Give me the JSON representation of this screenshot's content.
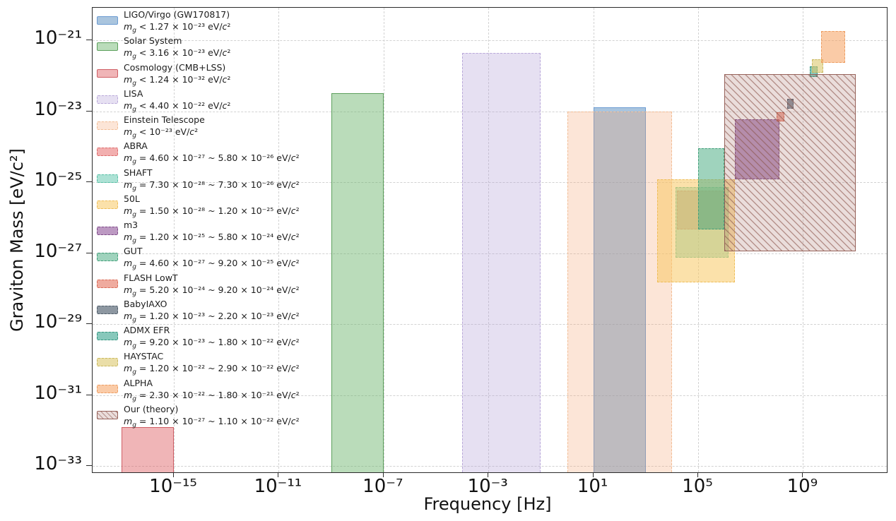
{
  "chart_data": {
    "type": "area",
    "title": "",
    "xlabel": "Frequency [Hz]",
    "ylabel": "Graviton Mass [eV/c²]",
    "x_scale": "log",
    "y_scale": "log",
    "xlim_exp": [
      -18.1,
      12.2
    ],
    "ylim_exp": [
      -33.2,
      -20.1
    ],
    "grid": "major dashed",
    "legend_position": "upper left",
    "x_ticks": [
      {
        "exp": -15,
        "label": "10⁻¹⁵"
      },
      {
        "exp": -11,
        "label": "10⁻¹¹"
      },
      {
        "exp": -7,
        "label": "10⁻⁷"
      },
      {
        "exp": -3,
        "label": "10⁻³"
      },
      {
        "exp": 1,
        "label": "10¹"
      },
      {
        "exp": 5,
        "label": "10⁵"
      },
      {
        "exp": 9,
        "label": "10⁹"
      }
    ],
    "y_ticks": [
      {
        "exp": -21,
        "label": "10⁻²¹"
      },
      {
        "exp": -23,
        "label": "10⁻²³"
      },
      {
        "exp": -25,
        "label": "10⁻²⁵"
      },
      {
        "exp": -27,
        "label": "10⁻²⁷"
      },
      {
        "exp": -29,
        "label": "10⁻²⁹"
      },
      {
        "exp": -31,
        "label": "10⁻³¹"
      },
      {
        "exp": -33,
        "label": "10⁻³³"
      }
    ],
    "regions": [
      {
        "name": "LIGO/Virgo (GW170817)",
        "mass_label": "m_g < 1.27 × 10⁻²³ eV/c²",
        "f_exp": [
          1.0,
          3.0
        ],
        "m_exp": [
          -33.2,
          -22.896
        ],
        "upper_limit": true,
        "fill": "rgba(86,140,190,0.50)",
        "border": "#6b9bd2",
        "border_style": "solid",
        "hatch": false
      },
      {
        "name": "Solar System",
        "mass_label": "m_g < 3.16 × 10⁻²³ eV/c²",
        "f_exp": [
          -9.0,
          -7.0
        ],
        "m_exp": [
          -33.2,
          -22.5
        ],
        "upper_limit": true,
        "fill": "rgba(102,178,102,0.45)",
        "border": "#5ca05c",
        "border_style": "solid",
        "hatch": false
      },
      {
        "name": "Cosmology (CMB+LSS)",
        "mass_label": "m_g < 1.24 × 10⁻³² eV/c²",
        "f_exp": [
          -17.0,
          -15.0
        ],
        "m_exp": [
          -33.2,
          -31.907
        ],
        "upper_limit": true,
        "fill": "rgba(222,90,95,0.45)",
        "border": "#cf5f66",
        "border_style": "solid",
        "hatch": false
      },
      {
        "name": "LISA",
        "mass_label": "m_g < 4.40 × 10⁻²² eV/c²",
        "f_exp": [
          -4.0,
          -1.0
        ],
        "m_exp": [
          -33.2,
          -21.357
        ],
        "upper_limit": true,
        "fill": "rgba(178,158,215,0.32)",
        "border": "#b8a7d9",
        "border_style": "dashed",
        "hatch": false
      },
      {
        "name": "Einstein Telescope",
        "mass_label": "m_g < 10⁻²³ eV/c²",
        "f_exp": [
          0.0,
          4.0
        ],
        "m_exp": [
          -33.2,
          -23.0
        ],
        "upper_limit": true,
        "fill": "rgba(246,160,110,0.28)",
        "border": "#f2bd95",
        "border_style": "dashed",
        "hatch": false
      },
      {
        "name": "ABRA",
        "mass_label": "m_g = 4.60 × 10⁻²⁷ ~ 5.80 × 10⁻²⁶ eV/c²",
        "f_exp": [
          4.2,
          6.0
        ],
        "m_exp": [
          -26.337,
          -25.237
        ],
        "upper_limit": false,
        "fill": "rgba(230,95,95,0.50)",
        "border": "#dd6a6a",
        "border_style": "dashed",
        "hatch": false
      },
      {
        "name": "SHAFT",
        "mass_label": "m_g = 7.30 × 10⁻²⁸ ~ 7.30 × 10⁻²⁶ eV/c²",
        "f_exp": [
          4.15,
          6.15
        ],
        "m_exp": [
          -27.137,
          -25.137
        ],
        "upper_limit": false,
        "fill": "rgba(98,200,175,0.52)",
        "border": "#54bfa4",
        "border_style": "dashed",
        "hatch": false
      },
      {
        "name": "50L",
        "mass_label": "m_g = 1.50 × 10⁻²⁸ ~ 1.20 × 10⁻²⁵ eV/c²",
        "f_exp": [
          3.45,
          6.4
        ],
        "m_exp": [
          -27.824,
          -24.921
        ],
        "upper_limit": false,
        "fill": "rgba(248,200,100,0.55)",
        "border": "#eebd58",
        "border_style": "dashed",
        "hatch": false
      },
      {
        "name": "m3",
        "mass_label": "m_g = 1.20 × 10⁻²⁵ ~ 5.80 × 10⁻²⁴ eV/c²",
        "f_exp": [
          6.4,
          8.1
        ],
        "m_exp": [
          -24.921,
          -23.237
        ],
        "upper_limit": false,
        "fill": "rgba(140,80,150,0.58)",
        "border": "#7c4886",
        "border_style": "dashed",
        "hatch": false
      },
      {
        "name": "GUT",
        "mass_label": "m_g = 4.60 × 10⁻²⁷ ~ 9.20 × 10⁻²⁵ eV/c²",
        "f_exp": [
          5.0,
          6.0
        ],
        "m_exp": [
          -26.337,
          -24.036
        ],
        "upper_limit": false,
        "fill": "rgba(80,175,135,0.55)",
        "border": "#3f9e78",
        "border_style": "dashed",
        "hatch": false
      },
      {
        "name": "FLASH LowT",
        "mass_label": "m_g = 5.20 × 10⁻²⁴ ~ 9.20 × 10⁻²⁴ eV/c²",
        "f_exp": [
          8.0,
          8.3
        ],
        "m_exp": [
          -23.284,
          -23.036
        ],
        "upper_limit": false,
        "fill": "rgba(228,115,95,0.60)",
        "border": "#d96a55",
        "border_style": "dashed",
        "hatch": false
      },
      {
        "name": "BabyIAXO",
        "mass_label": "m_g = 1.20 × 10⁻²³ ~ 2.20 × 10⁻²³ eV/c²",
        "f_exp": [
          8.4,
          8.65
        ],
        "m_exp": [
          -22.921,
          -22.658
        ],
        "upper_limit": false,
        "fill": "rgba(80,95,110,0.65)",
        "border": "#4f5c68",
        "border_style": "dashed",
        "hatch": false
      },
      {
        "name": "ADMX EFR",
        "mass_label": "m_g = 9.20 × 10⁻²³ ~ 1.80 × 10⁻²² eV/c²",
        "f_exp": [
          9.25,
          9.55
        ],
        "m_exp": [
          -22.036,
          -21.745
        ],
        "upper_limit": false,
        "fill": "rgba(70,170,150,0.65)",
        "border": "#35947f",
        "border_style": "dashed",
        "hatch": false
      },
      {
        "name": "HAYSTAC",
        "mass_label": "m_g = 1.20 × 10⁻²² ~ 2.90 × 10⁻²² eV/c²",
        "f_exp": [
          9.35,
          9.78
        ],
        "m_exp": [
          -21.921,
          -21.538
        ],
        "upper_limit": false,
        "fill": "rgba(220,200,110,0.60)",
        "border": "#c9b85e",
        "border_style": "dashed",
        "hatch": false
      },
      {
        "name": "ALPHA",
        "mass_label": "m_g = 2.30 × 10⁻²² ~ 1.80 × 10⁻²¹ eV/c²",
        "f_exp": [
          9.7,
          10.6
        ],
        "m_exp": [
          -21.638,
          -20.745
        ],
        "upper_limit": false,
        "fill": "rgba(245,160,95,0.55)",
        "border": "#ec9b5f",
        "border_style": "dashed",
        "hatch": false
      },
      {
        "name": "Our (theory)",
        "mass_label": "m_g = 1.10 × 10⁻²⁷ ~ 1.10 × 10⁻²² eV/c²",
        "f_exp": [
          6.0,
          11.0
        ],
        "m_exp": [
          -26.959,
          -21.959
        ],
        "upper_limit": false,
        "fill": "rgba(158,100,90,0.22)",
        "border": "#96625a",
        "border_style": "solid",
        "hatch": true,
        "hatch_color": "rgba(139,85,75,0.55)"
      }
    ]
  }
}
